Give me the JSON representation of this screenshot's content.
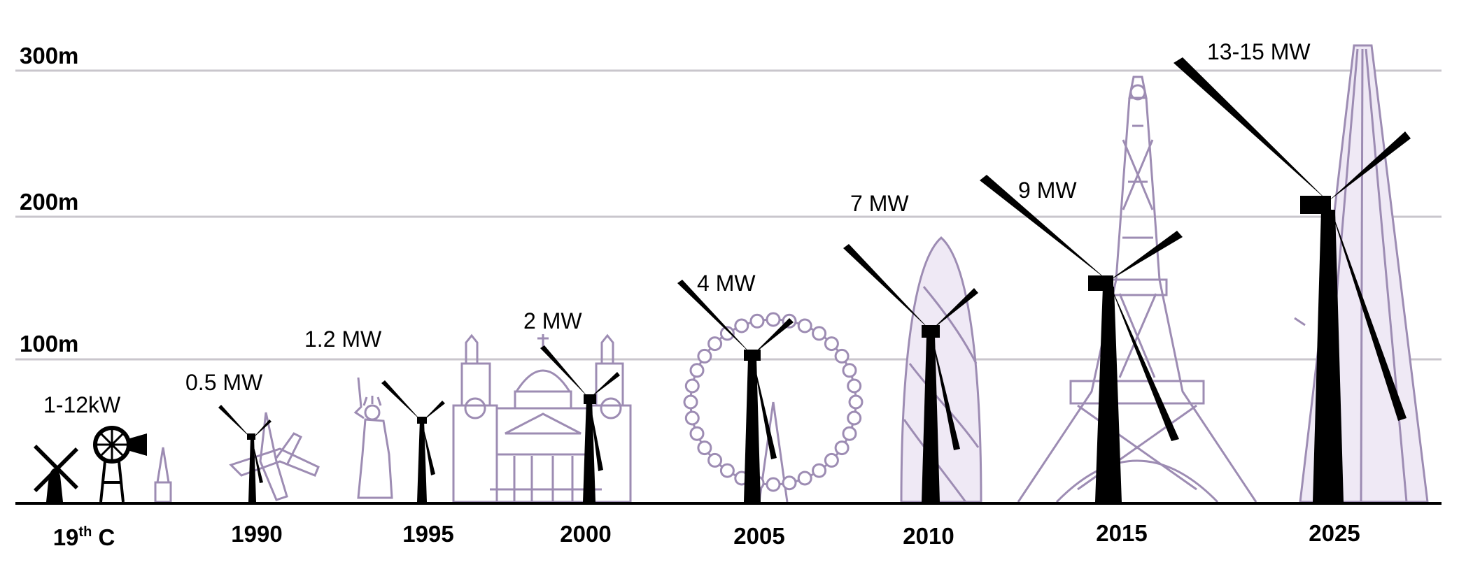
{
  "colors": {
    "turbine": "#000000",
    "landmark": "#9d8cb3",
    "gridline": "#c9c6cc",
    "background": "#ffffff"
  },
  "height_axis": [
    {
      "label": "300m",
      "value": 300
    },
    {
      "label": "200m",
      "value": 200
    },
    {
      "label": "100m",
      "value": 100
    }
  ],
  "eras": [
    {
      "year_main": "19",
      "year_sup": "th",
      "year_tail": " C",
      "power": "1-12kW",
      "landmark": "church-spire"
    },
    {
      "year": "1990",
      "power": "0.5 MW",
      "landmark": "airliner"
    },
    {
      "year": "1995",
      "power": "1.2 MW",
      "landmark": "statue-of-liberty"
    },
    {
      "year": "2000",
      "power": "2 MW",
      "landmark": "st-pauls-cathedral"
    },
    {
      "year": "2005",
      "power": "4 MW",
      "landmark": "london-eye"
    },
    {
      "year": "2010",
      "power": "7 MW",
      "landmark": "gherkin"
    },
    {
      "year": "2015",
      "power": "9 MW",
      "landmark": "eiffel-tower"
    },
    {
      "year": "2025",
      "power": "13-15 MW",
      "landmark": "the-shard"
    }
  ]
}
